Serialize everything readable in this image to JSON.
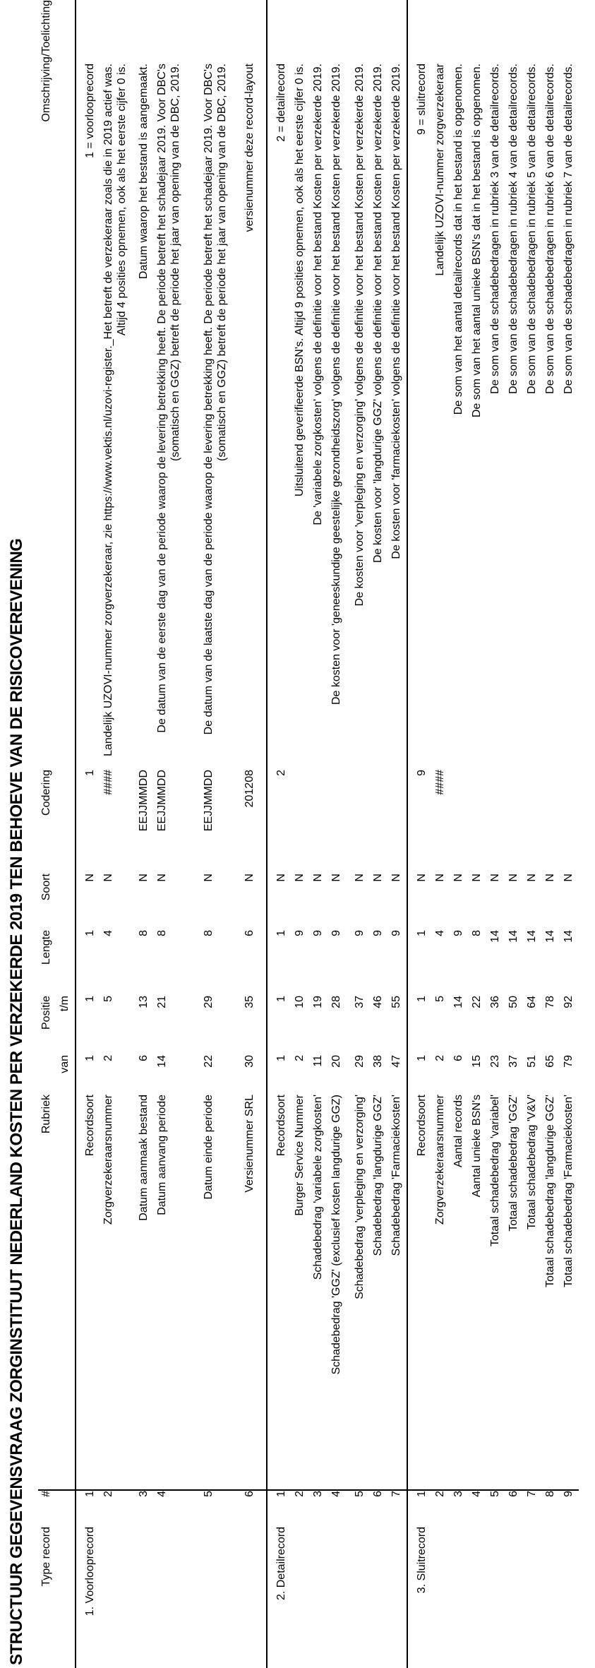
{
  "title": "STRUCTUUR GEGEVENSVRAAG ZORGINSTITUUT NEDERLAND KOSTEN PER VERZEKERDE 2019 TEN BEHOEVE VAN DE RISICOVEREVENING",
  "colors": {
    "text": "#000000",
    "background": "#ffffff",
    "rule": "#000000"
  },
  "orientation_note": "page rotated 90 degrees counter-clockwise",
  "table": {
    "headers": {
      "type_record": "Type record",
      "number": "#",
      "rubriek": "Rubriek",
      "positie": "Positie",
      "van": "van",
      "tm": "t/m",
      "lengte": "Lengte",
      "soort": "Soort",
      "codering": "Codering",
      "omschrijving": "Omschrijving/Toelichting"
    },
    "groups": [
      {
        "type": "1. Voorlooprecord",
        "rows": [
          {
            "nr": "1",
            "rubriek": "Recordsoort",
            "van": "1",
            "tm": "1",
            "lengte": "1",
            "soort": "N",
            "codering": "1",
            "omschrijving": "1 = voorlooprecord"
          },
          {
            "nr": "2",
            "rubriek": "Zorgverzekeraarsnummer",
            "van": "2",
            "tm": "5",
            "lengte": "4",
            "soort": "N",
            "codering": "####",
            "omschrijving": "Landelijk UZOVI-nummer zorgverzekeraar, zie https://www.vektis.nl/uzovi-register._Het betreft de verzekeraar zoals die in 2019 actief was. Altijd 4 posities opnemen, ook als het eerste cijfer 0 is."
          },
          {
            "nr": "3",
            "rubriek": "Datum aanmaak bestand",
            "van": "6",
            "tm": "13",
            "lengte": "8",
            "soort": "N",
            "codering": "EEJJMMDD",
            "omschrijving": "Datum waarop het bestand is aangemaakt."
          },
          {
            "nr": "4",
            "rubriek": "Datum aanvang periode",
            "van": "14",
            "tm": "21",
            "lengte": "8",
            "soort": "N",
            "codering": "EEJJMMDD",
            "omschrijving": "De datum van de eerste dag van de periode waarop de levering betrekking heeft. De periode betreft het schadejaar 2019. Voor DBC's (somatisch en GGZ) betreft de periode het jaar van opening van de DBC, 2019."
          },
          {
            "nr": "5",
            "rubriek": "Datum einde periode",
            "van": "22",
            "tm": "29",
            "lengte": "8",
            "soort": "N",
            "codering": "EEJJMMDD",
            "omschrijving": "De datum van de laatste dag van de periode waarop de levering betrekking heeft. De periode betreft het schadejaar 2019. Voor DBC's (somatisch en GGZ) betreft de periode het jaar van opening van de DBC, 2019."
          },
          {
            "nr": "6",
            "rubriek": "Versienummer SRL",
            "van": "30",
            "tm": "35",
            "lengte": "6",
            "soort": "N",
            "codering": "201208",
            "omschrijving": "versienummer deze record-layout"
          }
        ]
      },
      {
        "type": "2. Detailrecord",
        "rows": [
          {
            "nr": "1",
            "rubriek": "Recordsoort",
            "van": "1",
            "tm": "1",
            "lengte": "1",
            "soort": "N",
            "codering": "2",
            "omschrijving": "2 = detailrecord"
          },
          {
            "nr": "2",
            "rubriek": "Burger Service Nummer",
            "van": "2",
            "tm": "10",
            "lengte": "9",
            "soort": "N",
            "codering": "",
            "omschrijving": "Uitsluitend geverifieerde BSN's. Altijd 9 posities opnemen, ook als het eerste cijfer 0 is."
          },
          {
            "nr": "3",
            "rubriek": "Schadebedrag 'variabele zorgkosten'",
            "van": "11",
            "tm": "19",
            "lengte": "9",
            "soort": "N",
            "codering": "",
            "omschrijving": "De 'variabele zorgkosten' volgens de definitie voor het bestand Kosten per verzekerde 2019."
          },
          {
            "nr": "4",
            "rubriek": "Schadebedrag 'GGZ' (exclusief kosten langdurige GGZ)",
            "van": "20",
            "tm": "28",
            "lengte": "9",
            "soort": "N",
            "codering": "",
            "omschrijving": "De kosten voor 'geneeskundige geestelijke gezondheidszorg' volgens de definitie voor het bestand Kosten per verzekerde 2019."
          },
          {
            "nr": "5",
            "rubriek": "Schadebedrag 'verpleging en verzorging'",
            "van": "29",
            "tm": "37",
            "lengte": "9",
            "soort": "N",
            "codering": "",
            "omschrijving": "De kosten voor 'verpleging en verzorging' volgens de definitie voor het bestand Kosten per verzekerde 2019."
          },
          {
            "nr": "6",
            "rubriek": "Schadebedrag 'langdurige GGZ'",
            "van": "38",
            "tm": "46",
            "lengte": "9",
            "soort": "N",
            "codering": "",
            "omschrijving": "De kosten voor 'langdurige GGZ' volgens de definitie voor het bestand Kosten per verzekerde 2019."
          },
          {
            "nr": "7",
            "rubriek": "Schadebedrag 'Farmaciekosten'",
            "van": "47",
            "tm": "55",
            "lengte": "9",
            "soort": "N",
            "codering": "",
            "omschrijving": "De kosten voor 'farmaciekosten' volgens de definitie voor het bestand Kosten per verzekerde 2019."
          }
        ]
      },
      {
        "type": "3. Sluitrecord",
        "rows": [
          {
            "nr": "1",
            "rubriek": "Recordsoort",
            "van": "1",
            "tm": "1",
            "lengte": "1",
            "soort": "N",
            "codering": "9",
            "omschrijving": "9 = sluitrecord"
          },
          {
            "nr": "2",
            "rubriek": "Zorgverzekeraarsnummer",
            "van": "2",
            "tm": "5",
            "lengte": "4",
            "soort": "N",
            "codering": "####",
            "omschrijving": "Landelijk UZOVI-nummer zorgverzekeraar"
          },
          {
            "nr": "3",
            "rubriek": "Aantal records",
            "van": "6",
            "tm": "14",
            "lengte": "9",
            "soort": "N",
            "codering": "",
            "omschrijving": "De som van het aantal detailrecords dat in het bestand is opgenomen."
          },
          {
            "nr": "4",
            "rubriek": "Aantal unieke BSN's",
            "van": "15",
            "tm": "22",
            "lengte": "8",
            "soort": "N",
            "codering": "",
            "omschrijving": "De som van het aantal unieke BSN's dat in het bestand is opgenomen."
          },
          {
            "nr": "5",
            "rubriek": "Totaal schadebedrag 'variabel'",
            "van": "23",
            "tm": "36",
            "lengte": "14",
            "soort": "N",
            "codering": "",
            "omschrijving": "De som van de schadebedragen in rubriek 3 van de detailrecords."
          },
          {
            "nr": "6",
            "rubriek": "Totaal schadebedrag 'GGZ'",
            "van": "37",
            "tm": "50",
            "lengte": "14",
            "soort": "N",
            "codering": "",
            "omschrijving": "De som van de schadebedragen in rubriek 4 van de detailrecords."
          },
          {
            "nr": "7",
            "rubriek": "Totaal schadebedrag 'V&V'",
            "van": "51",
            "tm": "64",
            "lengte": "14",
            "soort": "N",
            "codering": "",
            "omschrijving": "De som van de schadebedragen in rubriek 5 van de detailrecords."
          },
          {
            "nr": "8",
            "rubriek": "Totaal schadebedrag 'langdurige GGZ'",
            "van": "65",
            "tm": "78",
            "lengte": "14",
            "soort": "N",
            "codering": "",
            "omschrijving": "De som van de schadebedragen in rubriek 6 van de detailrecords."
          },
          {
            "nr": "9",
            "rubriek": "Totaal schadebedrag 'Farmaciekosten'",
            "van": "79",
            "tm": "92",
            "lengte": "14",
            "soort": "N",
            "codering": "",
            "omschrijving": "De som van de schadebedragen in rubriek 7 van de detailrecords."
          }
        ]
      }
    ]
  }
}
